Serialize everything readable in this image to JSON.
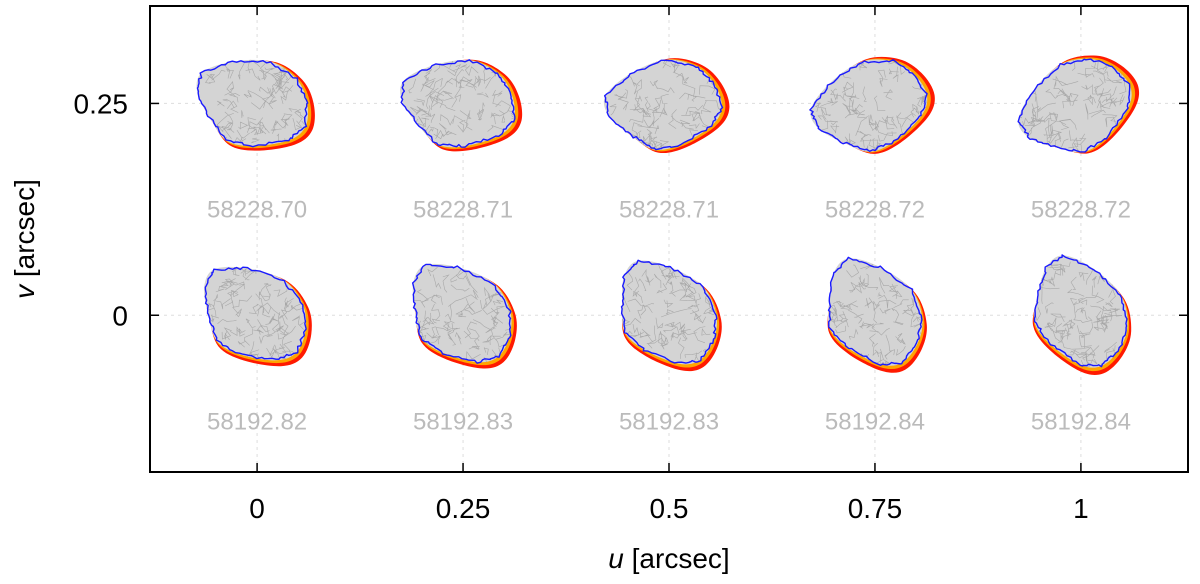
{
  "chart_data": {
    "type": "scatter",
    "title": "",
    "xlabel": {
      "var": "u",
      "unit": " [arcsec]"
    },
    "ylabel": {
      "var": "v",
      "unit": " [arcsec]"
    },
    "xlim": [
      -0.13,
      1.13
    ],
    "ylim": [
      -0.185,
      0.365
    ],
    "grid": true,
    "xticks": [
      {
        "value": 0,
        "label": "0"
      },
      {
        "value": 0.25,
        "label": "0.25"
      },
      {
        "value": 0.5,
        "label": "0.5"
      },
      {
        "value": 0.75,
        "label": "0.75"
      },
      {
        "value": 1,
        "label": "1"
      }
    ],
    "yticks": [
      {
        "value": 0,
        "label": "0"
      },
      {
        "value": 0.25,
        "label": "0.25"
      }
    ],
    "colors": {
      "outline": "#1a1aff",
      "fill": "#d4d4d4",
      "mesh": "#a8a8a8",
      "residual_red": "#ff1a00",
      "residual_orange": "#ffa500",
      "label": "#bbbbbb",
      "grid": "#dddddd"
    },
    "panels": [
      {
        "u": 0,
        "v": 0.25,
        "epoch": "58228.70",
        "rotation": -6
      },
      {
        "u": 0.25,
        "v": 0.25,
        "epoch": "58228.71",
        "rotation": -14
      },
      {
        "u": 0.5,
        "v": 0.25,
        "epoch": "58228.71",
        "rotation": -28
      },
      {
        "u": 0.75,
        "v": 0.25,
        "epoch": "58228.72",
        "rotation": -40
      },
      {
        "u": 1,
        "v": 0.25,
        "epoch": "58228.72",
        "rotation": -50
      },
      {
        "u": 0,
        "v": 0,
        "epoch": "58192.82",
        "rotation": 12
      },
      {
        "u": 0.25,
        "v": 0,
        "epoch": "58192.83",
        "rotation": 18
      },
      {
        "u": 0.5,
        "v": 0,
        "epoch": "58192.83",
        "rotation": 25
      },
      {
        "u": 0.75,
        "v": 0,
        "epoch": "58192.84",
        "rotation": 30
      },
      {
        "u": 1,
        "v": 0,
        "epoch": "58192.84",
        "rotation": 38
      }
    ]
  }
}
